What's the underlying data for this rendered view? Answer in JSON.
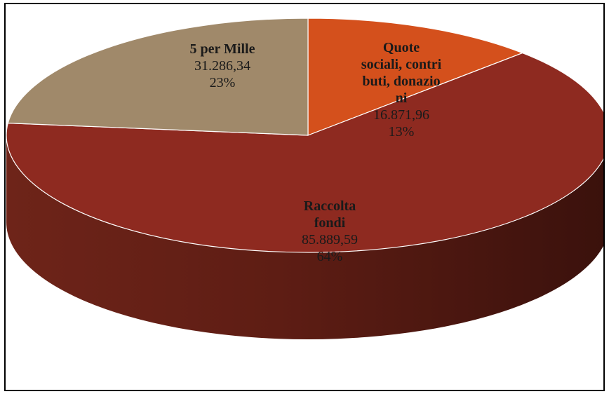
{
  "chart_data": {
    "type": "pie",
    "three_d": true,
    "legend": "none",
    "slices": [
      {
        "name": "Quote sociali, contributi, donazioni",
        "name_lines": [
          "Quote",
          "sociali, contri",
          "buti, donazio",
          "ni"
        ],
        "value_label": "16.871,96",
        "value": 16871.96,
        "percent_label": "13%",
        "color": "#D4501C"
      },
      {
        "name": "Raccolta fondi",
        "name_lines": [
          "Raccolta",
          "fondi"
        ],
        "value_label": "85.889,59",
        "value": 85889.59,
        "percent_label": "64%",
        "color": "#8E2A20"
      },
      {
        "name": "5 per Mille",
        "name_lines": [
          "5 per Mille"
        ],
        "value_label": "31.286,34",
        "value": 31286.34,
        "percent_label": "23%",
        "color": "#A0896A"
      }
    ]
  }
}
